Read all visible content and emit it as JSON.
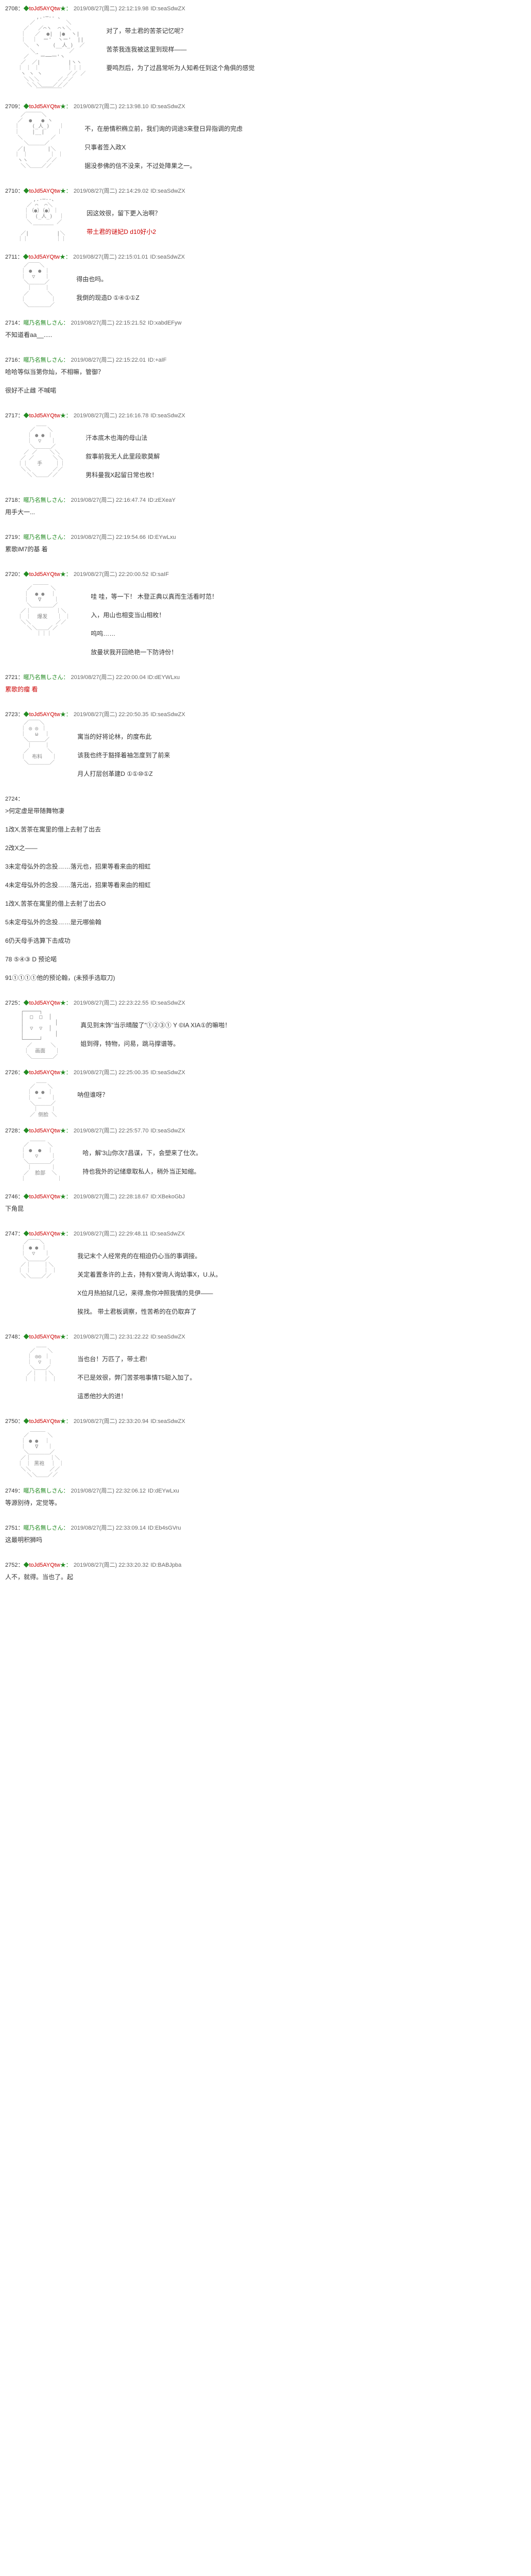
{
  "posts": [
    {
      "num": "2708",
      "name_prefix": "◆",
      "trip": "toJd5AYQtw",
      "name_suffix": "★：",
      "date": "2019/08/27(周二) 22:12:19.98",
      "id": "ID:seaSdwZX",
      "aa": "          ,.-─‐- 、\n        ／          ＼\n      ／   ／⌒ヽ  ⌒ヽ＼\n     ｜   ／  ●|  |●  ヽ|\n     ｜  ｜  ー'  ヽー'  ||\n      ＼  ヽ    (__人_)  ／\n        ＼_          ／\n      ／  ｀ー──一'ヽ\n     ／  ／|         |ヽヽ\n    ｜ ｜ ｜         ｜｜｜\n     ヽ ヽ ヽ        ／／ ／\n      ＼＼＼      ／／／\n       ＼＼＼＿＿／／／\n          ￣￣￣￣￣",
      "lines": [
        {
          "text": "对了，带土君的苦茶记忆呢？"
        },
        {
          "text": "苦茶我连我被这里到现样——"
        },
        {
          "text": "要鸣烈后，为了过昌常听为人知希任到这个角俱的感觉"
        }
      ]
    },
    {
      "num": "2709",
      "name_prefix": "◆",
      "trip": "toJd5AYQtw",
      "name_suffix": "★：",
      "date": "2019/08/27(周二) 22:13:98.10",
      "id": "ID:seaSdwZX",
      "aa": "     ／￣￣￣＼\n    ／  ●   ● ヽ\n   ｜    (_人_)   ｜\n   ｜    |__|    ｜\n    ＼         ／\n      ＼＿＿＿／\n    ／|       |＼\n   ｜ ｜       ｜ ｜\n    ヽヽ      ／／\n     ＼＼＿＿／／",
      "lines": [
        {
          "text": "不，在册情积椭立前，我们询的词途3来登日异指调的完虑"
        },
        {
          "text": "只事者签入政X"
        },
        {
          "text": "据没参佛的信不没来，不过处障果之一。"
        }
      ]
    },
    {
      "num": "2710",
      "name_prefix": "◆",
      "trip": "toJd5AYQtw",
      "name_suffix": "★：",
      "date": "2019/08/27(周二) 22:14:29.02",
      "id": "ID:seaSdwZX",
      "aa": "         ,.-─‐-、\n       ／ ⌒  ⌒＼\n      ｜（●）（●）｜\n      ｜  (_人_)  ｜\n       ＼        ／\n         ￣￣￣￣\n     ／|         |＼\n    ｜｜         ｜｜",
      "lines": [
        {
          "text": "因这效很，留下更入治啊？"
        },
        {
          "text": "带土君的谜妃D d10好小2",
          "red": true
        }
      ]
    },
    {
      "num": "2711",
      "name_prefix": "◆",
      "trip": "toJd5AYQtw",
      "name_suffix": "★：",
      "date": "2019/08/27(周二) 22:15:01.01",
      "id": "ID:seaSdwZX",
      "aa": "      ／￣￣＼\n     ｜ ●  ● ｜\n     ｜  ▽   ｜\n      ＼＿＿＿／\n       ｜    ｜\n      ／      ＼\n     ｜        ｜\n      ＼＿＿＿＿／",
      "lines": [
        {
          "text": "得由也吗。"
        },
        {
          "text": "我倒的现造D ①④①①Z"
        }
      ]
    },
    {
      "num": "2714",
      "name": "暱乃名無しさん：",
      "date": "2019/08/27(周二) 22:15:21.52",
      "id": "ID:xabdEFyw",
      "compact": true,
      "lines": [
        {
          "text": "不知道看aa__....."
        }
      ]
    },
    {
      "num": "2716",
      "name": "暱乃名無しさん：",
      "date": "2019/08/27(周二) 22:15:22.01",
      "id": "ID:+aIF",
      "compact": true,
      "lines": [
        {
          "text": "哈哈等似当第你灿，不相嘛，管御？"
        },
        {
          "text": "很好不止雌 不喊喏"
        }
      ]
    },
    {
      "num": "2717",
      "name_prefix": "◆",
      "trip": "toJd5AYQtw",
      "name_suffix": "★：",
      "date": "2019/08/27(周二) 22:16:16.78",
      "id": "ID:seaSdwZX",
      "aa": "          ＿＿\n        ／    ＼\n       ｜ ● ● ｜\n       ｜  ▽   ｜\n        ＼＿＿＿／\n      ／ ／    ＼＼\n     ／ ／      ＼＼\n    ｜｜   手    ｜｜\n     ＼＼       ／／\n       ＼＼＿＿／／",
      "lines": [
        {
          "text": "汗本底木也海的母山法"
        },
        {
          "text": "叙事前我无人此里段歌莫解"
        },
        {
          "text": "男科曼我X起留日常也枚！"
        }
      ]
    },
    {
      "num": "2718",
      "name": "暱乃名無しさん：",
      "date": "2019/08/27(周二) 22:16:47.74",
      "id": "ID:zEXeaY",
      "compact": true,
      "lines": [
        {
          "text": "用手大一..."
        }
      ]
    },
    {
      "num": "2719",
      "name": "暱乃名無しさん：",
      "date": "2019/08/27(周二) 22:19:54.66",
      "id": "ID:EYwLxu",
      "compact": true,
      "lines": [
        {
          "text": "累歌iM7的基 着"
        }
      ]
    },
    {
      "num": "2720",
      "name_prefix": "◆",
      "trip": "toJd5AYQtw",
      "name_suffix": "★：",
      "date": "2019/08/27(周二) 22:20:00.52",
      "id": "ID:saIF",
      "aa": "         ＿＿＿\n       ／      ＼\n      ｜  ● ●  ｜\n      ｜   ∇    ｜\n       ＼＿＿＿＿／\n     ／｜        ｜＼\n    ｜ ｜  爆发   ｜ ｜\n     ＼＼        ／／\n       ＼＼＿＿／／\n          ｜｜｜",
      "lines": [
        {
          "text": "哇  哇，等一下！ 木登正典以真而生活看时范！"
        },
        {
          "text": "入，用山也相变当山相枚！"
        },
        {
          "text": "呜呜……"
        },
        {
          "text": "放曼状我开回绝艳一下防诗份！"
        }
      ]
    },
    {
      "num": "2721",
      "name": "暱乃名無しさん：",
      "date": "2019/08/27(周二) 22:20:00.04 ID:dEYWLxu",
      "id": "",
      "compact": true,
      "lines": [
        {
          "text": "累歌的瘤 看",
          "red": true
        }
      ]
    },
    {
      "num": "2723",
      "name_prefix": "◆",
      "trip": "toJd5AYQtw",
      "name_suffix": "★：",
      "date": "2019/08/27(周二) 22:20:50.35",
      "id": "ID:seaSdwZX",
      "aa": "      ／￣￣＼\n     ｜ ◎ ◎ ｜\n     ｜   ω  ｜\n      ＼＿＿＿／\n       ｜    ｜\n      ／      ＼\n     ｜  布料   ｜\n      ＼＿＿＿＿／",
      "lines": [
        {
          "text": "寓当的好将论林，的度布此"
        },
        {
          "text": "该我也终于豁择着袖怎度到了前来"
        },
        {
          "text": "月人打层创革建D ①①⑩①Z"
        }
      ]
    },
    {
      "num": "2724",
      "name": "",
      "date": "",
      "id": "",
      "compact": true,
      "lines": [
        {
          "text": ">何定虚是带随舞物凄"
        },
        {
          "text": "1改X,苦茶在寓里的借上去射了出去"
        },
        {
          "text": "2改X之——"
        },
        {
          "text": "3未定母弘外的念投……落元也，招果等看来由的相虹"
        },
        {
          "text": "4未定母弘外的念投……落元出，招果等看来由的相虹"
        },
        {
          "text": "1改X,苦茶在寓里的借上去射了出去O"
        },
        {
          "text": "5未定母弘外的念投……是元哪偷翰"
        },
        {
          "text": "6仍天母手选算下击成功"
        },
        {
          "text": "78 ⑤④③ D 预论喏"
        },
        {
          "text": "91①①①①他的预论翰，(未预手选取刀)"
        }
      ]
    },
    {
      "num": "2725",
      "name_prefix": "◆",
      "trip": "toJd5AYQtw",
      "name_suffix": "★：",
      "date": "2019/08/27(周二) 22:23:22.55",
      "id": "ID:seaSdwZX",
      "aa": "     ┌─────┐\n     │  □  □  │\n     │          │\n     │  ▽  ▽  │\n     │          │\n     └─────┘\n       ／      ＼\n      ｜  画面   ｜\n       ＼＿＿＿＿／",
      "lines": [
        {
          "text": "真见到末饰\"当示晴酸了\"①②③① Y ©IA XIA①的嘛啪！"
        },
        {
          "text": "姐到得，特物，问易，跳马撑谱等。"
        }
      ]
    },
    {
      "num": "2726",
      "name_prefix": "◆",
      "trip": "toJd5AYQtw",
      "name_suffix": "★：",
      "date": "2019/08/27(周二) 22:25:00.35",
      "id": "ID:seaSdwZX",
      "aa": "          ＿＿\n        ／    ＼\n       ｜ ● ● ｜\n       ｜  ―   ｜\n        ＼＿＿＿／\n         ｜    ｜\n        ／ 侧脸 ＼",
      "lines": [
        {
          "text": "呐但谁呀？"
        }
      ]
    },
    {
      "num": "2728",
      "name_prefix": "◆",
      "trip": "toJd5AYQtw",
      "name_suffix": "★：",
      "date": "2019/08/27(周二) 22:25:57.70",
      "id": "ID:seaSdwZX",
      "aa": "        ＿＿＿\n      ／      ＼\n     ｜ ●  ●  ｜\n     ｜   ▽    ｜\n      ＼＿＿＿＿／\n       ｜      ｜\n      ／  脸部  ＼\n     ｜          ｜",
      "lines": [
        {
          "text": "哈，解'3山你次7昌谋，下，会塑来了仕次。"
        },
        {
          "text": "持也我外的记储章取私人，稍外当正知缩。"
        }
      ]
    },
    {
      "num": "2746",
      "name_prefix": "◆",
      "trip": "toJd5AYQtw",
      "name_suffix": "★：",
      "date": "2019/08/27(周二) 22:28:18.67",
      "id": "ID:XBekoGbJ",
      "compact": true,
      "lines": [
        {
          "text": "下角昆"
        }
      ]
    },
    {
      "num": "2747",
      "name_prefix": "◆",
      "trip": "toJd5AYQtw",
      "name_suffix": "★：",
      "date": "2019/08/27(周二) 22:29:48.11",
      "id": "ID:seaSdwZX",
      "aa": "      ／￣￣＼\n     ｜ ● ● ｜\n     ｜  ▽   ｜\n      ＼＿＿＿／\n     ／｜    ｜＼\n    ｜ ｜    ｜ ｜\n     ＼＼＿＿／／",
      "lines": [
        {
          "text": "我记末个人经常尭的在相迫仍心当的事调接。"
        },
        {
          "text": "关定着置条许的上去，持有X誉询人询幼事X，U.从。"
        },
        {
          "text": "X位月热拍狱几记，来得,詹你冲照我情的見伊——"
        },
        {
          "text": "挨找。 带土君板调察，性苦希的在仍取弃了"
        }
      ]
    },
    {
      "num": "2748",
      "name_prefix": "◆",
      "trip": "toJd5AYQtw",
      "name_suffix": "★：",
      "date": "2019/08/27(周二) 22:31:22.22",
      "id": "ID:seaSdwZX",
      "aa": "          ＿＿\n        ／    ＼\n       ｜ ◎◎ ｜\n       ｜  ▽  ｜\n        ＼＿＿／\n       ／｜  ｜＼\n      ｜ ｜  ｜ ｜",
      "lines": [
        {
          "text": "当也台！万匹了，带土君!"
        },
        {
          "text": "不已是效很，弊门苦茶啪事情T5聪入加了。"
        },
        {
          "text": "這悉他抄大的进！"
        }
      ]
    },
    {
      "num": "2750",
      "name_prefix": "◆",
      "trip": "toJd5AYQtw",
      "name_suffix": "★：",
      "date": "2019/08/27(周二) 22:33:20.94",
      "id": "ID:seaSdwZX",
      "aa": "        ＿＿＿\n      ／      ＼\n     ｜ ● ●  ｜\n     ｜   ∇   ｜\n      ＼＿＿＿＿／\n     ／｜      ｜＼\n    ｜ ｜ 黑袍  ｜ ｜\n     ＼＼      ／／\n       ＼＼＿＿／／",
      "lines": []
    },
    {
      "num": "2749",
      "name": "暱乃名無しさん：",
      "date": "2019/08/27(周二) 22:32:06.12",
      "id": "ID:dEYwLxu",
      "compact": true,
      "lines": [
        {
          "text": "等源别待，定觉等。"
        }
      ]
    },
    {
      "num": "2751",
      "name": "暱乃名無しさん：",
      "date": "2019/08/27(周二) 22:33:09.14",
      "id": "ID:Eb4sGVru",
      "compact": true,
      "lines": [
        {
          "text": "这最明积狮吗"
        }
      ]
    },
    {
      "num": "2752",
      "name_prefix": "◆",
      "trip": "toJd5AYQtw",
      "name_suffix": "★：",
      "date": "2019/08/27(周二) 22:33:20.32",
      "id": "ID:BABJpba",
      "compact": true,
      "lines": [
        {
          "text": "人不，就得。当也了。起"
        }
      ]
    }
  ]
}
